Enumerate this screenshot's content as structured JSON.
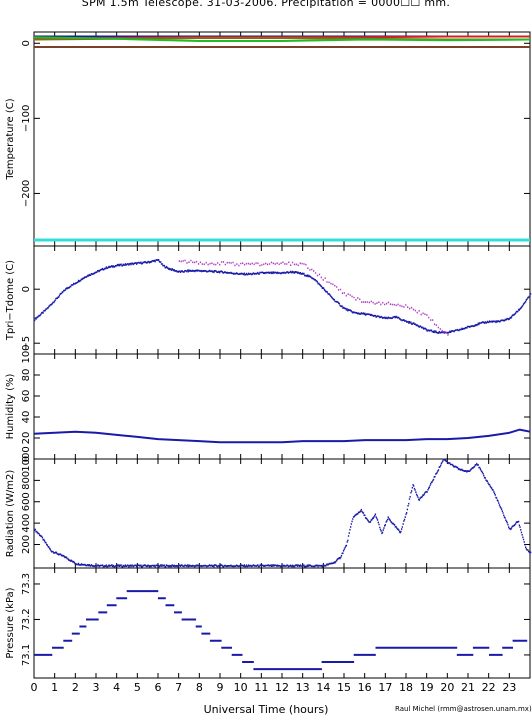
{
  "title": "SPM 1.5m Telescope. 31-03-2006. Precipitation = 0000☐☐ mm.",
  "credit": "Raul Michel (rmm@astrosen.unam.mx)",
  "chart_data": [
    {
      "type": "line",
      "ylabel": "Temperature (C)",
      "ylim": [
        -270,
        15
      ],
      "yticks": [
        0,
        -100,
        -200
      ],
      "ytick_labels": [
        "0",
        "−100",
        "−200"
      ],
      "x": [
        0,
        4,
        8,
        12,
        16,
        20,
        24
      ],
      "series": [
        {
          "color": "#1a1aa8",
          "values": [
            9,
            9,
            9,
            9,
            9,
            9,
            9
          ]
        },
        {
          "color": "#d62020",
          "values": [
            6,
            7,
            8,
            8,
            8,
            9,
            9
          ]
        },
        {
          "color": "#8b6914",
          "values": [
            5,
            6,
            7,
            7,
            6,
            5,
            5
          ]
        },
        {
          "color": "#22bb22",
          "values": [
            8,
            6,
            3,
            3,
            5,
            4,
            5
          ]
        },
        {
          "color": "#7a4028",
          "values": [
            -5,
            -5,
            -5,
            -5,
            -5,
            -5,
            -5
          ]
        },
        {
          "color": "#33dddd",
          "values": [
            -262,
            -262,
            -262,
            -262,
            -262,
            -262,
            -262
          ]
        }
      ]
    },
    {
      "type": "scatter",
      "ylabel": "Tpri−Tdome (C)",
      "ylim": [
        -6,
        4
      ],
      "yticks": [
        0,
        -5
      ],
      "ytick_labels": [
        "0",
        "−5"
      ],
      "series": [
        {
          "name": "",
          "color": "#1a1aa8",
          "x": [
            0,
            0.5,
            1,
            1.5,
            2,
            2.5,
            3,
            3.5,
            4,
            4.5,
            5,
            5.5,
            6,
            6.2,
            6.5,
            7,
            7.5,
            8,
            9,
            10,
            10.5,
            11,
            12,
            12.5,
            13,
            13.5,
            14,
            14.5,
            15,
            15.5,
            16,
            16.5,
            17,
            17.5,
            18,
            18.5,
            19,
            19.5,
            20,
            20.5,
            21,
            21.5,
            22,
            22.5,
            23,
            23.5,
            24
          ],
          "y": [
            -2.8,
            -2.0,
            -1.0,
            0,
            0.6,
            1.2,
            1.6,
            2.0,
            2.2,
            2.3,
            2.4,
            2.5,
            2.7,
            2.2,
            1.9,
            1.6,
            1.7,
            1.7,
            1.6,
            1.4,
            1.4,
            1.5,
            1.5,
            1.6,
            1.4,
            1.0,
            0,
            -1.0,
            -1.8,
            -2.2,
            -2.3,
            -2.5,
            -2.7,
            -2.6,
            -3.0,
            -3.3,
            -3.8,
            -4.0,
            -4.0,
            -3.8,
            -3.5,
            -3.2,
            -3.0,
            -3.0,
            -2.7,
            -1.8,
            -0.5
          ]
        },
        {
          "name": "",
          "color": "#b040c0",
          "x": [
            7,
            8,
            9,
            10,
            11,
            12,
            13,
            15,
            16,
            17,
            18,
            19,
            20
          ],
          "y": [
            2.7,
            2.4,
            2.4,
            2.3,
            2.3,
            2.4,
            2.3,
            -0.4,
            -1.2,
            -1.3,
            -1.6,
            -2.5,
            -4.3
          ]
        }
      ]
    },
    {
      "type": "line",
      "ylabel": "Humidity (%)",
      "ylim": [
        0,
        100
      ],
      "yticks": [
        0,
        20,
        40,
        60,
        80,
        100
      ],
      "ytick_labels": [
        "0",
        "20",
        "40",
        "60",
        "80",
        "100"
      ],
      "series": [
        {
          "name": "",
          "color": "#1a1aa8",
          "x": [
            0,
            1,
            2,
            3,
            4,
            5,
            6,
            7,
            8,
            9,
            10,
            11,
            12,
            13,
            14,
            15,
            16,
            17,
            18,
            19,
            20,
            21,
            22,
            23,
            23.5,
            24
          ],
          "y": [
            24,
            25,
            26,
            25,
            23,
            21,
            19,
            18,
            17,
            16,
            16,
            16,
            16,
            17,
            17,
            17,
            18,
            18,
            18,
            19,
            19,
            20,
            22,
            25,
            28,
            26
          ]
        }
      ]
    },
    {
      "type": "scatter",
      "ylabel": "Radiation (W/m2)",
      "ylim": [
        -20,
        1000
      ],
      "yticks": [
        200,
        400,
        600,
        800,
        1000
      ],
      "ytick_labels": [
        "200",
        "400",
        "600",
        "800",
        "1000"
      ],
      "series": [
        {
          "name": "",
          "color": "#1a1aa8",
          "x": [
            0,
            0.3,
            0.8,
            1.5,
            2.0,
            3,
            5,
            7,
            9,
            11,
            13,
            14,
            14.5,
            14.8,
            15.1,
            15.4,
            15.8,
            16.2,
            16.5,
            16.8,
            17.1,
            17.4,
            17.7,
            18.0,
            18.3,
            18.6,
            19.0,
            19.4,
            19.8,
            20.2,
            20.6,
            21.0,
            21.4,
            21.8,
            22.2,
            22.6,
            23.0,
            23.4,
            23.8,
            24
          ],
          "y": [
            340,
            280,
            140,
            80,
            20,
            0,
            0,
            0,
            0,
            0,
            0,
            0,
            30,
            80,
            200,
            450,
            520,
            400,
            480,
            300,
            450,
            380,
            310,
            500,
            760,
            620,
            700,
            850,
            1000,
            940,
            900,
            880,
            960,
            820,
            700,
            520,
            340,
            420,
            150,
            120
          ]
        }
      ]
    },
    {
      "type": "scatter",
      "ylabel": "Pressure (kPa)",
      "xlabel": "Universal Time (hours)",
      "ylim": [
        73.035,
        73.345
      ],
      "yticks": [
        73.1,
        73.2,
        73.3
      ],
      "ytick_labels": [
        "73.1",
        "73.2",
        "73.3"
      ],
      "xlim": [
        0,
        24
      ],
      "xticks": [
        0,
        1,
        2,
        3,
        4,
        5,
        6,
        7,
        8,
        9,
        10,
        11,
        12,
        13,
        14,
        15,
        16,
        17,
        18,
        19,
        20,
        21,
        22,
        23
      ],
      "xtick_labels": [
        "0",
        "1",
        "2",
        "3",
        "4",
        "5",
        "6",
        "7",
        "8",
        "9",
        "10",
        "11",
        "12",
        "13",
        "14",
        "15",
        "16",
        "17",
        "18",
        "19",
        "20",
        "21",
        "22",
        "23"
      ],
      "series": [
        {
          "name": "",
          "color": "#1a1aa8",
          "x": [
            0,
            0.5,
            1.2,
            1.6,
            2.0,
            2.5,
            2.9,
            3.3,
            3.7,
            4.2,
            4.7,
            5.2,
            5.8,
            6.1,
            6.6,
            6.9,
            7.3,
            7.8,
            8.2,
            8.8,
            9.3,
            9.8,
            10.3,
            10.9,
            11.5,
            12.2,
            12.9,
            13.6,
            14.2,
            14.6,
            15.2,
            15.7,
            16.2,
            16.8,
            17.4,
            18.0,
            18.8,
            19.4,
            20.1,
            20.8,
            21.6,
            22.4,
            22.9,
            23.4,
            23.8
          ],
          "y": [
            73.1,
            73.1,
            73.12,
            73.14,
            73.16,
            73.19,
            73.2,
            73.22,
            73.24,
            73.26,
            73.28,
            73.28,
            73.28,
            73.26,
            73.24,
            73.22,
            73.2,
            73.19,
            73.16,
            73.14,
            73.12,
            73.1,
            73.08,
            73.06,
            73.06,
            73.06,
            73.06,
            73.06,
            73.08,
            73.08,
            73.08,
            73.1,
            73.1,
            73.12,
            73.12,
            73.12,
            73.12,
            73.12,
            73.12,
            73.1,
            73.12,
            73.1,
            73.12,
            73.14,
            73.13
          ]
        }
      ]
    }
  ]
}
